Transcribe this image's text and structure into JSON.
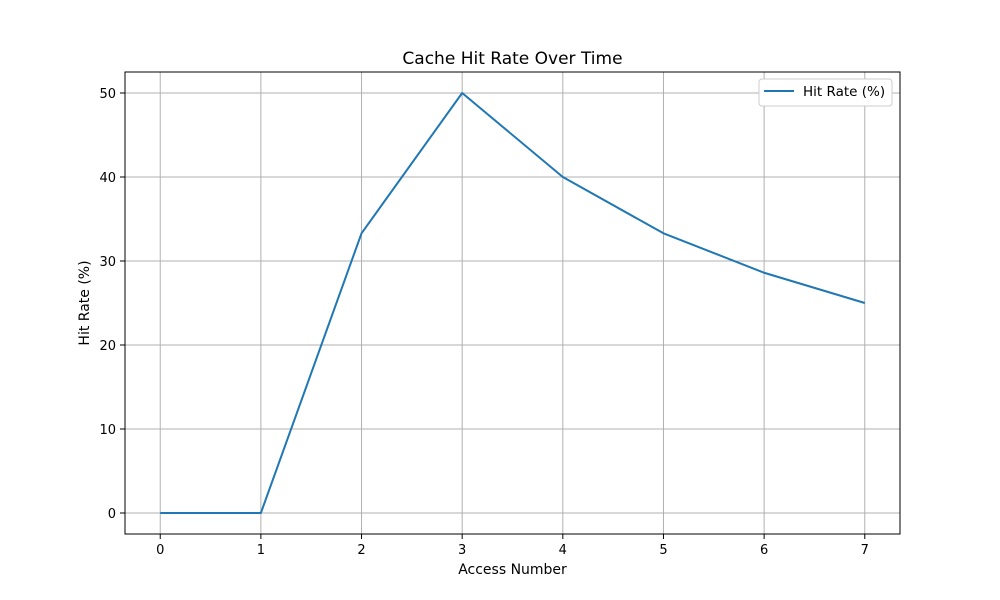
{
  "chart_data": {
    "type": "line",
    "title": "Cache Hit Rate Over Time",
    "xlabel": "Access Number",
    "ylabel": "Hit Rate (%)",
    "x": [
      0,
      1,
      2,
      3,
      4,
      5,
      6,
      7
    ],
    "series": [
      {
        "name": "Hit Rate (%)",
        "values": [
          0,
          0,
          33.3,
          50,
          40,
          33.3,
          28.6,
          25
        ],
        "color": "#1f77b4"
      }
    ],
    "xticks": [
      0,
      1,
      2,
      3,
      4,
      5,
      6,
      7
    ],
    "yticks": [
      0,
      10,
      20,
      30,
      40,
      50
    ],
    "xlim": [
      -0.35,
      7.35
    ],
    "ylim": [
      -2.5,
      52.5
    ],
    "grid": true,
    "legend_position": "top-right"
  }
}
